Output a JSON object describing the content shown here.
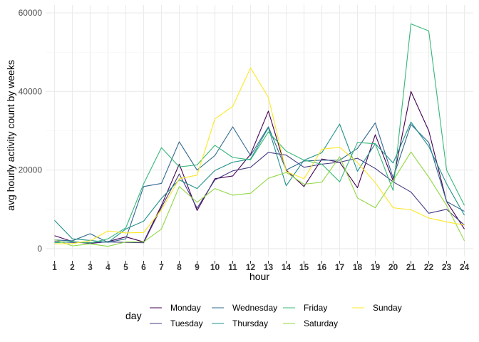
{
  "chart_data": {
    "type": "line",
    "title": "",
    "xlabel": "hour",
    "ylabel": "avg hourly activity count by weeks",
    "x": [
      1,
      2,
      3,
      4,
      5,
      6,
      7,
      8,
      9,
      10,
      11,
      12,
      13,
      14,
      15,
      16,
      17,
      18,
      19,
      20,
      21,
      22,
      23,
      24
    ],
    "x_tick_labels": [
      "1",
      "2",
      "3",
      "4",
      "5",
      "6",
      "7",
      "8",
      "9",
      "10",
      "11",
      "12",
      "13",
      "14",
      "15",
      "16",
      "17",
      "18",
      "19",
      "20",
      "21",
      "22",
      "23",
      "24"
    ],
    "ylim": [
      0,
      60000
    ],
    "y_ticks": [
      0,
      20000,
      40000,
      60000
    ],
    "y_tick_labels": [
      "0",
      "20000",
      "40000",
      "60000"
    ],
    "grid": true,
    "legend": {
      "title": "day",
      "position": "bottom"
    },
    "series": [
      {
        "name": "Monday",
        "color": "#440154",
        "values": [
          3300,
          1800,
          1300,
          1800,
          3000,
          1700,
          11000,
          21500,
          9700,
          17800,
          18500,
          24000,
          35000,
          20000,
          15800,
          22800,
          22000,
          15500,
          29000,
          17300,
          40000,
          30000,
          12000,
          5000
        ]
      },
      {
        "name": "Tuesday",
        "color": "#443983",
        "values": [
          1800,
          1600,
          1500,
          1700,
          1600,
          1500,
          10500,
          19000,
          10300,
          17500,
          19800,
          20700,
          24500,
          23800,
          20700,
          21500,
          22000,
          23000,
          20400,
          17000,
          14400,
          9000,
          10000,
          6000
        ]
      },
      {
        "name": "Wednesday",
        "color": "#31688e",
        "values": [
          2200,
          2000,
          3800,
          1600,
          2500,
          15800,
          16600,
          27200,
          20000,
          23700,
          31000,
          23700,
          31000,
          20000,
          22300,
          22500,
          22500,
          25500,
          32000,
          18000,
          31600,
          27000,
          12000,
          9500
        ]
      },
      {
        "name": "Thursday",
        "color": "#21918c",
        "values": [
          7200,
          2500,
          2100,
          1600,
          5000,
          7000,
          12800,
          17500,
          15300,
          19900,
          22000,
          22800,
          30800,
          16000,
          22500,
          24400,
          31700,
          19700,
          26700,
          21800,
          32200,
          26000,
          16500,
          8500
        ]
      },
      {
        "name": "Friday",
        "color": "#35b779",
        "values": [
          1500,
          1800,
          1400,
          2500,
          5300,
          16500,
          25700,
          20800,
          21300,
          26300,
          23200,
          22600,
          29700,
          24800,
          22500,
          21500,
          17000,
          27000,
          26700,
          14800,
          57200,
          55400,
          20000,
          11000
        ]
      },
      {
        "name": "Saturday",
        "color": "#90d743",
        "values": [
          2300,
          700,
          1200,
          600,
          1700,
          1700,
          5000,
          15800,
          11800,
          15300,
          13600,
          14100,
          17900,
          19400,
          16400,
          16900,
          23400,
          12900,
          10400,
          17300,
          24600,
          18200,
          11000,
          2000
        ]
      },
      {
        "name": "Sunday",
        "color": "#fde725",
        "values": [
          1200,
          1300,
          2000,
          4500,
          4000,
          4100,
          9900,
          17800,
          18700,
          33000,
          36200,
          46000,
          38500,
          19600,
          17800,
          25300,
          25800,
          21900,
          16800,
          10400,
          9900,
          7800,
          6800,
          6000
        ]
      }
    ]
  }
}
